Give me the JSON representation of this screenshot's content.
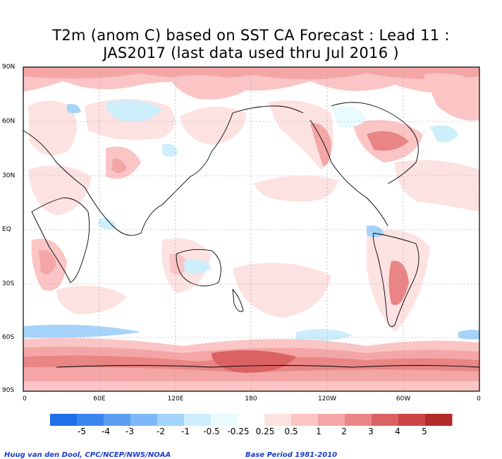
{
  "title": {
    "line1": "T2m (anom C) based on SST CA Forecast : Lead 11 :",
    "line2": "JAS2017 (last data used thru Jul 2016 )"
  },
  "lat_labels": [
    "90N",
    "60N",
    "30N",
    "EQ",
    "30S",
    "60S",
    "90S"
  ],
  "lon_labels": [
    "0",
    "60E",
    "120E",
    "180",
    "120W",
    "60W",
    "0"
  ],
  "colorbar": {
    "labels": [
      "-5",
      "-4",
      "-3",
      "-2",
      "-1",
      "-0.5",
      "-0.25",
      "0.25",
      "0.5",
      "1",
      "2",
      "3",
      "4",
      "5"
    ],
    "colors": [
      "#1e6fe8",
      "#3a86ee",
      "#5b9ff2",
      "#7fb8f6",
      "#a5d3f9",
      "#cdeefb",
      "#e9fbfd",
      "#ffffff",
      "#fde2e2",
      "#fbc5c5",
      "#f4a6a6",
      "#e98585",
      "#db6262",
      "#cb4545",
      "#b32a2a"
    ]
  },
  "credits": {
    "left": "Huug van den Dool, CPC/NCEP/NWS/NOAA",
    "right": "Base Period 1981-2010"
  }
}
